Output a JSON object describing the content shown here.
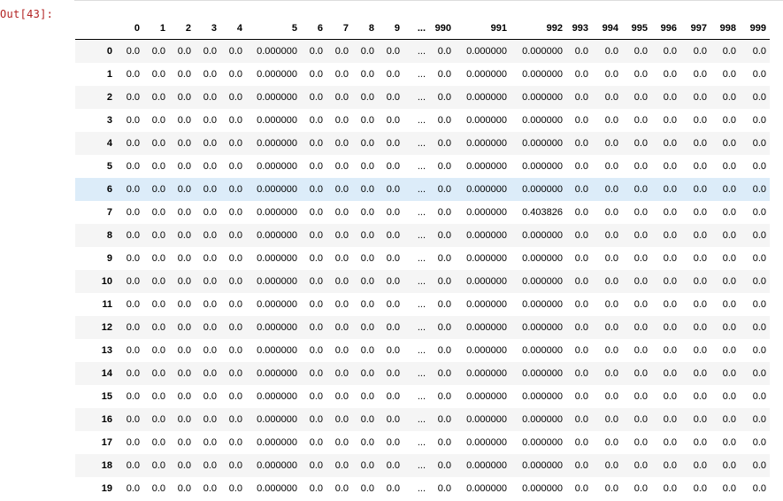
{
  "cell": {
    "prompt": "Out[43]:"
  },
  "dataframe": {
    "columns": [
      "0",
      "1",
      "2",
      "3",
      "4",
      "5",
      "6",
      "7",
      "8",
      "9",
      "...",
      "990",
      "991",
      "992",
      "993",
      "994",
      "995",
      "996",
      "997",
      "998",
      "999"
    ],
    "rows": [
      {
        "index": "0",
        "values": [
          "0.0",
          "0.0",
          "0.0",
          "0.0",
          "0.0",
          "0.000000",
          "0.0",
          "0.0",
          "0.0",
          "0.0",
          "...",
          "0.0",
          "0.000000",
          "0.000000",
          "0.0",
          "0.0",
          "0.0",
          "0.0",
          "0.0",
          "0.0",
          "0.0"
        ]
      },
      {
        "index": "1",
        "values": [
          "0.0",
          "0.0",
          "0.0",
          "0.0",
          "0.0",
          "0.000000",
          "0.0",
          "0.0",
          "0.0",
          "0.0",
          "...",
          "0.0",
          "0.000000",
          "0.000000",
          "0.0",
          "0.0",
          "0.0",
          "0.0",
          "0.0",
          "0.0",
          "0.0"
        ]
      },
      {
        "index": "2",
        "values": [
          "0.0",
          "0.0",
          "0.0",
          "0.0",
          "0.0",
          "0.000000",
          "0.0",
          "0.0",
          "0.0",
          "0.0",
          "...",
          "0.0",
          "0.000000",
          "0.000000",
          "0.0",
          "0.0",
          "0.0",
          "0.0",
          "0.0",
          "0.0",
          "0.0"
        ]
      },
      {
        "index": "3",
        "values": [
          "0.0",
          "0.0",
          "0.0",
          "0.0",
          "0.0",
          "0.000000",
          "0.0",
          "0.0",
          "0.0",
          "0.0",
          "...",
          "0.0",
          "0.000000",
          "0.000000",
          "0.0",
          "0.0",
          "0.0",
          "0.0",
          "0.0",
          "0.0",
          "0.0"
        ]
      },
      {
        "index": "4",
        "values": [
          "0.0",
          "0.0",
          "0.0",
          "0.0",
          "0.0",
          "0.000000",
          "0.0",
          "0.0",
          "0.0",
          "0.0",
          "...",
          "0.0",
          "0.000000",
          "0.000000",
          "0.0",
          "0.0",
          "0.0",
          "0.0",
          "0.0",
          "0.0",
          "0.0"
        ]
      },
      {
        "index": "5",
        "values": [
          "0.0",
          "0.0",
          "0.0",
          "0.0",
          "0.0",
          "0.000000",
          "0.0",
          "0.0",
          "0.0",
          "0.0",
          "...",
          "0.0",
          "0.000000",
          "0.000000",
          "0.0",
          "0.0",
          "0.0",
          "0.0",
          "0.0",
          "0.0",
          "0.0"
        ]
      },
      {
        "index": "6",
        "values": [
          "0.0",
          "0.0",
          "0.0",
          "0.0",
          "0.0",
          "0.000000",
          "0.0",
          "0.0",
          "0.0",
          "0.0",
          "...",
          "0.0",
          "0.000000",
          "0.000000",
          "0.0",
          "0.0",
          "0.0",
          "0.0",
          "0.0",
          "0.0",
          "0.0"
        ]
      },
      {
        "index": "7",
        "values": [
          "0.0",
          "0.0",
          "0.0",
          "0.0",
          "0.0",
          "0.000000",
          "0.0",
          "0.0",
          "0.0",
          "0.0",
          "...",
          "0.0",
          "0.000000",
          "0.403826",
          "0.0",
          "0.0",
          "0.0",
          "0.0",
          "0.0",
          "0.0",
          "0.0"
        ]
      },
      {
        "index": "8",
        "values": [
          "0.0",
          "0.0",
          "0.0",
          "0.0",
          "0.0",
          "0.000000",
          "0.0",
          "0.0",
          "0.0",
          "0.0",
          "...",
          "0.0",
          "0.000000",
          "0.000000",
          "0.0",
          "0.0",
          "0.0",
          "0.0",
          "0.0",
          "0.0",
          "0.0"
        ]
      },
      {
        "index": "9",
        "values": [
          "0.0",
          "0.0",
          "0.0",
          "0.0",
          "0.0",
          "0.000000",
          "0.0",
          "0.0",
          "0.0",
          "0.0",
          "...",
          "0.0",
          "0.000000",
          "0.000000",
          "0.0",
          "0.0",
          "0.0",
          "0.0",
          "0.0",
          "0.0",
          "0.0"
        ]
      },
      {
        "index": "10",
        "values": [
          "0.0",
          "0.0",
          "0.0",
          "0.0",
          "0.0",
          "0.000000",
          "0.0",
          "0.0",
          "0.0",
          "0.0",
          "...",
          "0.0",
          "0.000000",
          "0.000000",
          "0.0",
          "0.0",
          "0.0",
          "0.0",
          "0.0",
          "0.0",
          "0.0"
        ]
      },
      {
        "index": "11",
        "values": [
          "0.0",
          "0.0",
          "0.0",
          "0.0",
          "0.0",
          "0.000000",
          "0.0",
          "0.0",
          "0.0",
          "0.0",
          "...",
          "0.0",
          "0.000000",
          "0.000000",
          "0.0",
          "0.0",
          "0.0",
          "0.0",
          "0.0",
          "0.0",
          "0.0"
        ]
      },
      {
        "index": "12",
        "values": [
          "0.0",
          "0.0",
          "0.0",
          "0.0",
          "0.0",
          "0.000000",
          "0.0",
          "0.0",
          "0.0",
          "0.0",
          "...",
          "0.0",
          "0.000000",
          "0.000000",
          "0.0",
          "0.0",
          "0.0",
          "0.0",
          "0.0",
          "0.0",
          "0.0"
        ]
      },
      {
        "index": "13",
        "values": [
          "0.0",
          "0.0",
          "0.0",
          "0.0",
          "0.0",
          "0.000000",
          "0.0",
          "0.0",
          "0.0",
          "0.0",
          "...",
          "0.0",
          "0.000000",
          "0.000000",
          "0.0",
          "0.0",
          "0.0",
          "0.0",
          "0.0",
          "0.0",
          "0.0"
        ]
      },
      {
        "index": "14",
        "values": [
          "0.0",
          "0.0",
          "0.0",
          "0.0",
          "0.0",
          "0.000000",
          "0.0",
          "0.0",
          "0.0",
          "0.0",
          "...",
          "0.0",
          "0.000000",
          "0.000000",
          "0.0",
          "0.0",
          "0.0",
          "0.0",
          "0.0",
          "0.0",
          "0.0"
        ]
      },
      {
        "index": "15",
        "values": [
          "0.0",
          "0.0",
          "0.0",
          "0.0",
          "0.0",
          "0.000000",
          "0.0",
          "0.0",
          "0.0",
          "0.0",
          "...",
          "0.0",
          "0.000000",
          "0.000000",
          "0.0",
          "0.0",
          "0.0",
          "0.0",
          "0.0",
          "0.0",
          "0.0"
        ]
      },
      {
        "index": "16",
        "values": [
          "0.0",
          "0.0",
          "0.0",
          "0.0",
          "0.0",
          "0.000000",
          "0.0",
          "0.0",
          "0.0",
          "0.0",
          "...",
          "0.0",
          "0.000000",
          "0.000000",
          "0.0",
          "0.0",
          "0.0",
          "0.0",
          "0.0",
          "0.0",
          "0.0"
        ]
      },
      {
        "index": "17",
        "values": [
          "0.0",
          "0.0",
          "0.0",
          "0.0",
          "0.0",
          "0.000000",
          "0.0",
          "0.0",
          "0.0",
          "0.0",
          "...",
          "0.0",
          "0.000000",
          "0.000000",
          "0.0",
          "0.0",
          "0.0",
          "0.0",
          "0.0",
          "0.0",
          "0.0"
        ]
      },
      {
        "index": "18",
        "values": [
          "0.0",
          "0.0",
          "0.0",
          "0.0",
          "0.0",
          "0.000000",
          "0.0",
          "0.0",
          "0.0",
          "0.0",
          "...",
          "0.0",
          "0.000000",
          "0.000000",
          "0.0",
          "0.0",
          "0.0",
          "0.0",
          "0.0",
          "0.0",
          "0.0"
        ]
      },
      {
        "index": "19",
        "values": [
          "0.0",
          "0.0",
          "0.0",
          "0.0",
          "0.0",
          "0.000000",
          "0.0",
          "0.0",
          "0.0",
          "0.0",
          "...",
          "0.0",
          "0.000000",
          "0.000000",
          "0.0",
          "0.0",
          "0.0",
          "0.0",
          "0.0",
          "0.0",
          "0.0"
        ]
      }
    ],
    "highlighted_row": "6",
    "colors": {
      "prompt": "#b22222",
      "row_stripe": "#f5f5f5",
      "row_hover": "#dcecf9",
      "header_rule": "#000000"
    }
  }
}
